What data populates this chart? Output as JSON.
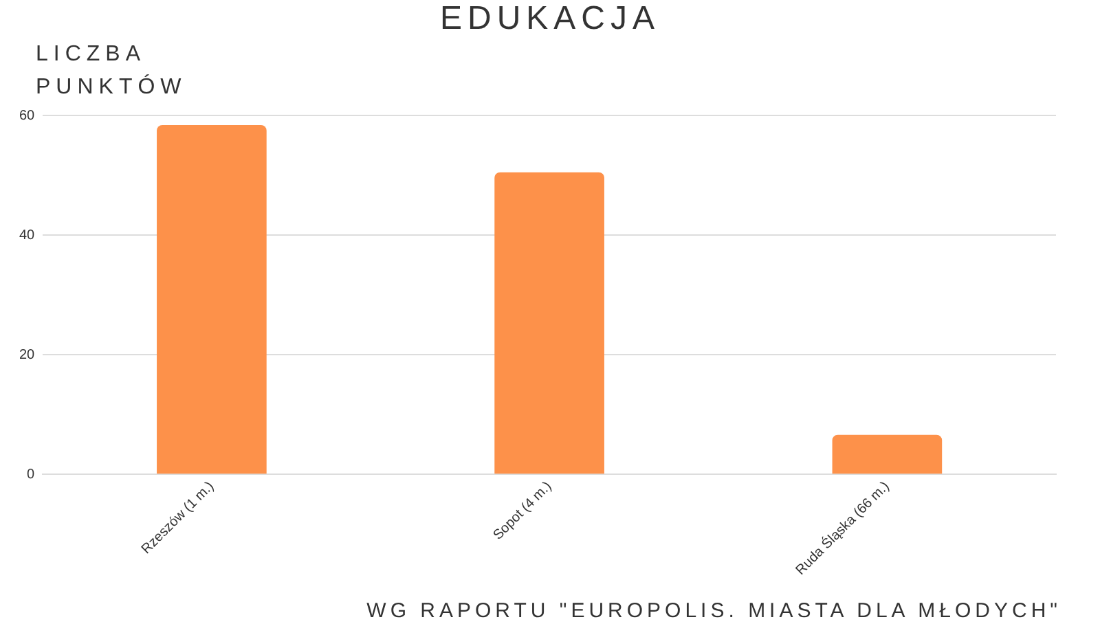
{
  "chart_data": {
    "type": "bar",
    "title": "EDUKACJA",
    "ylabel": "LICZBA PUNKTÓW",
    "categories": [
      "Rzeszów (1 m.)",
      "Sopot (4 m.)",
      "Ruda Śląska (66 m.)"
    ],
    "values": [
      58.4,
      50.5,
      6.6
    ],
    "color": "#fd914a",
    "ylim": [
      0,
      60
    ],
    "yticks": [
      0,
      20,
      40,
      60
    ],
    "grid": "y",
    "annotations": [
      "WG RAPORTU \"EUROPOLIS. MIASTA DLA MŁODYCH\""
    ]
  }
}
